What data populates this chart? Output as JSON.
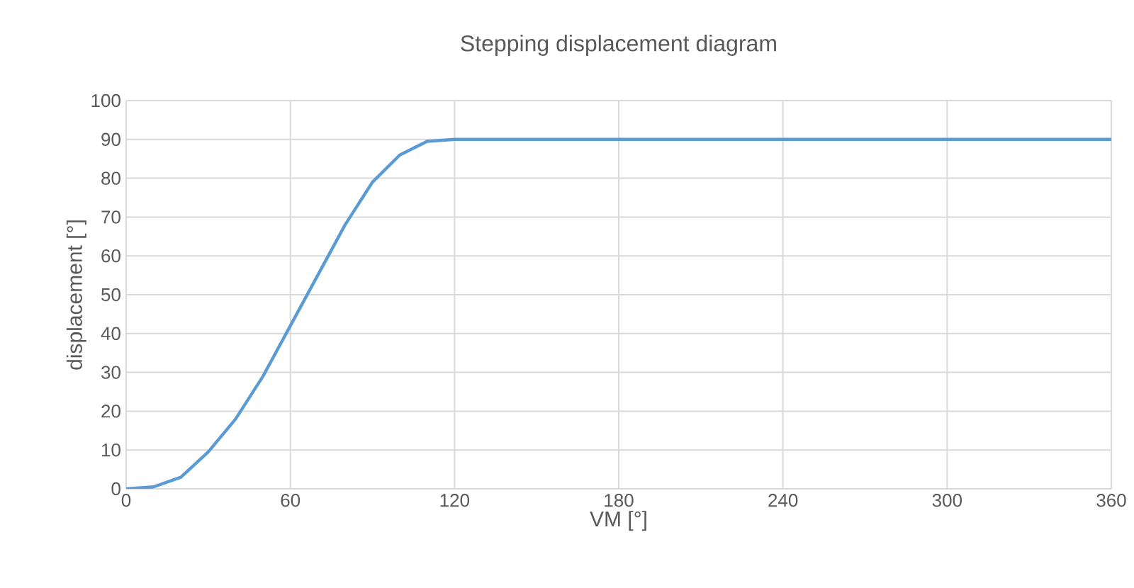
{
  "chart_data": {
    "type": "line",
    "title": "Stepping displacement diagram",
    "xlabel": "VM [°]",
    "ylabel": "displacement [°]",
    "x": [
      0,
      10,
      20,
      30,
      40,
      50,
      60,
      70,
      80,
      90,
      100,
      110,
      120,
      180,
      240,
      300,
      360
    ],
    "series": [
      {
        "color": "#5b9bd5",
        "values": [
          0,
          0.5,
          3,
          9.5,
          18,
          29,
          42,
          55,
          68,
          79,
          86,
          89.5,
          90,
          90,
          90,
          90,
          90
        ]
      }
    ],
    "xlim": [
      0,
      360
    ],
    "xticks": [
      0,
      60,
      120,
      180,
      240,
      300,
      360
    ],
    "ylim": [
      0,
      100
    ],
    "yticks": [
      0,
      10,
      20,
      30,
      40,
      50,
      60,
      70,
      80,
      90,
      100
    ],
    "grid": true,
    "marker": "none",
    "line_style": "solid"
  }
}
